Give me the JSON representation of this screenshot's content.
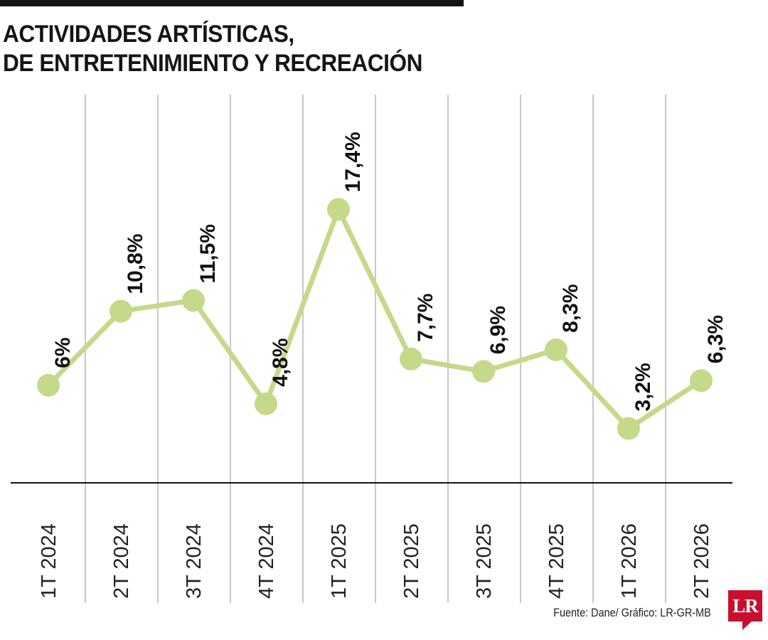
{
  "chart_data": {
    "type": "line",
    "title": "ACTIVIDADES ARTÍSTICAS, DE ENTRETENIMIENTO Y RECREACIÓN",
    "title_lines": [
      "ACTIVIDADES ARTÍSTICAS,",
      "DE ENTRETENIMIENTO Y RECREACIÓN"
    ],
    "categories": [
      "1T 2024",
      "2T 2024",
      "3T 2024",
      "4T 2024",
      "1T 2025",
      "2T 2025",
      "3T 2025",
      "4T 2025",
      "1T 2026",
      "2T 2026"
    ],
    "values": [
      6.0,
      10.8,
      11.5,
      4.8,
      17.4,
      7.7,
      6.9,
      8.3,
      3.2,
      6.3
    ],
    "data_labels": [
      "6%",
      "10,8%",
      "11,5%",
      "4,8%",
      "17,4%",
      "7,7%",
      "6,9%",
      "8,3%",
      "3,2%",
      "6,3%"
    ],
    "xlabel": "",
    "ylabel": "",
    "ylim": [
      0,
      20
    ],
    "grid": "vertical",
    "line_color": "#c5d98a",
    "baseline_color": "#111111",
    "grid_color": "#b5b5b5"
  },
  "footer": {
    "source": "Fuente: Dane/ Gráfico: LR-GR-MB",
    "logo_text": "LR",
    "logo_color": "#c8102e"
  }
}
